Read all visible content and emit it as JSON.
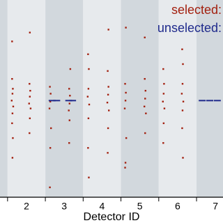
{
  "chart_data": {
    "type": "scatter",
    "x_label": "Detector ID",
    "xlim": [
      1.3,
      7.2
    ],
    "ylim": [
      -1,
      1
    ],
    "xticks": [
      2,
      3,
      4,
      5,
      6,
      7
    ],
    "xticks_minor": [
      1.5,
      2.5,
      3.5,
      4.5,
      5.5,
      6.5
    ],
    "band_colors": [
      "#d2d8dd",
      "#e7eaed"
    ],
    "legend": "upper right",
    "series": [
      {
        "name": "selected:",
        "color": "#a3200f",
        "marker": "dot",
        "x": [
          1.62,
          1.64,
          1.63,
          1.61,
          1.65,
          1.63,
          1.62,
          1.64,
          1.63,
          1.62,
          2.08,
          2.1,
          2.09,
          2.07,
          2.11,
          2.09,
          2.08,
          2.09,
          2.62,
          2.64,
          2.63,
          2.61,
          2.65,
          2.63,
          2.62,
          3.13,
          3.15,
          3.14,
          3.12,
          3.16,
          3.14,
          3.13,
          3.63,
          3.65,
          3.64,
          3.62,
          3.66,
          3.64,
          3.63,
          3.65,
          4.15,
          4.17,
          4.16,
          4.14,
          4.18,
          4.16,
          4.15,
          4.17,
          4.61,
          4.63,
          4.62,
          4.6,
          4.64,
          4.62,
          4.61,
          4.63,
          5.13,
          5.15,
          5.14,
          5.12,
          5.16,
          5.14,
          5.13,
          5.62,
          5.64,
          5.63,
          5.61,
          5.65,
          5.63,
          5.62,
          6.12,
          6.14,
          6.13,
          6.11,
          6.15,
          6.13,
          6.12,
          6.14
        ],
        "y": [
          0.2,
          0.1,
          0.05,
          -0.02,
          -0.08,
          -0.15,
          -0.25,
          -0.4,
          -0.6,
          0.58,
          0.15,
          0.08,
          0.02,
          -0.05,
          -0.1,
          -0.2,
          -0.35,
          0.67,
          0.12,
          0.05,
          -0.03,
          -0.1,
          -0.3,
          -0.5,
          -0.9,
          0.1,
          0.03,
          -0.05,
          -0.12,
          0.3,
          -0.22,
          -0.45,
          0.45,
          0.3,
          0.1,
          0.02,
          -0.06,
          -0.2,
          -0.5,
          -0.8,
          0.28,
          0.12,
          0.04,
          -0.04,
          -0.12,
          -0.3,
          -0.55,
          0.7,
          0.15,
          0.06,
          -0.02,
          -0.1,
          -0.4,
          -0.65,
          -0.7,
          0.72,
          0.2,
          0.08,
          0.0,
          -0.08,
          -0.15,
          -0.35,
          0.62,
          0.3,
          0.15,
          0.05,
          -0.03,
          -0.1,
          -0.25,
          -0.45,
          0.5,
          0.35,
          0.15,
          0.05,
          -0.03,
          -0.12,
          -0.3,
          -0.6
        ]
      },
      {
        "name": "unselected:",
        "color": "#1f2a8c",
        "marker": "dash",
        "x": [
          2.68,
          2.8,
          3.12,
          3.22,
          6.65,
          6.85,
          7.05
        ],
        "y": [
          -0.02,
          -0.02,
          -0.02,
          -0.02,
          -0.02,
          -0.02,
          -0.02
        ]
      }
    ]
  }
}
